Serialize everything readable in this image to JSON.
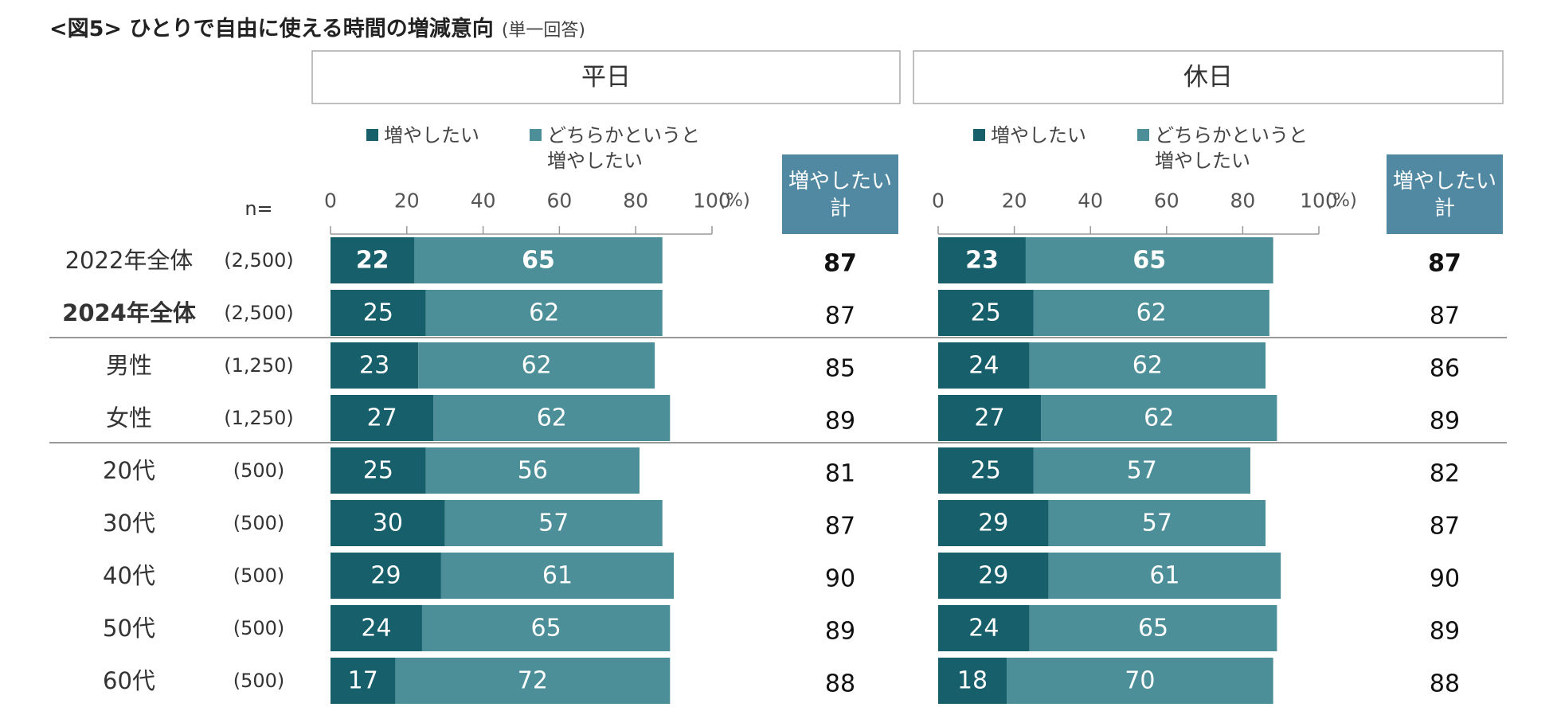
{
  "title": {
    "main": "<図5> ひとりで自由に使える時間の増減意向",
    "sub": "(単一回答)"
  },
  "n_label": "n=",
  "colors": {
    "dark": "#175f6b",
    "light": "#4d8f98",
    "total_bg": "#5189a3",
    "panel_border": "#aaaaaa",
    "axis": "#999999",
    "divider": "#777777"
  },
  "chart_data": {
    "type": "stacked-bar",
    "unit": "(%)",
    "xlim": [
      0,
      100
    ],
    "ticks": [
      "0",
      "20",
      "40",
      "60",
      "80",
      "100"
    ],
    "legend": {
      "series1": "増やしたい",
      "series2_line1": "どちらかというと",
      "series2_line2": "増やしたい"
    },
    "total_header_line1": "増やしたい",
    "total_header_line2": "計",
    "rows": [
      {
        "label": "2022年全体",
        "n": "(2,500)",
        "bold_label": false,
        "bold_values": true
      },
      {
        "label": "2024年全体",
        "n": "(2,500)",
        "bold_label": true,
        "bold_values": false
      },
      {
        "label": "男性",
        "n": "(1,250)",
        "bold_label": false,
        "bold_values": false
      },
      {
        "label": "女性",
        "n": "(1,250)",
        "bold_label": false,
        "bold_values": false
      },
      {
        "label": "20代",
        "n": "(500)",
        "bold_label": false,
        "bold_values": false
      },
      {
        "label": "30代",
        "n": "(500)",
        "bold_label": false,
        "bold_values": false
      },
      {
        "label": "40代",
        "n": "(500)",
        "bold_label": false,
        "bold_values": false
      },
      {
        "label": "50代",
        "n": "(500)",
        "bold_label": false,
        "bold_values": false
      },
      {
        "label": "60代",
        "n": "(500)",
        "bold_label": false,
        "bold_values": false
      }
    ],
    "panels": [
      {
        "title": "平日",
        "series": [
          {
            "name": "増やしたい",
            "values": [
              22,
              25,
              23,
              27,
              25,
              30,
              29,
              24,
              17
            ]
          },
          {
            "name": "どちらかというと増やしたい",
            "values": [
              65,
              62,
              62,
              62,
              56,
              57,
              61,
              65,
              72
            ]
          }
        ],
        "totals": [
          87,
          87,
          85,
          89,
          81,
          87,
          90,
          89,
          88
        ]
      },
      {
        "title": "休日",
        "series": [
          {
            "name": "増やしたい",
            "values": [
              23,
              25,
              24,
              27,
              25,
              29,
              29,
              24,
              18
            ]
          },
          {
            "name": "どちらかというと増やしたい",
            "values": [
              65,
              62,
              62,
              62,
              57,
              57,
              61,
              65,
              70
            ]
          }
        ],
        "totals": [
          87,
          87,
          86,
          89,
          82,
          87,
          90,
          89,
          88
        ]
      }
    ]
  }
}
